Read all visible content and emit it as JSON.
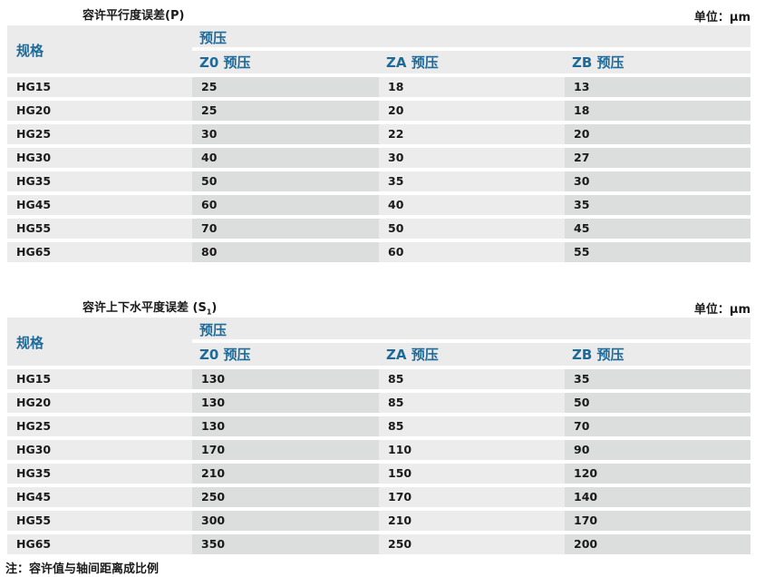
{
  "table1": {
    "title": "容许平行度误差(P)",
    "unit": "单位：μm",
    "spec": "规格",
    "preload": "预压",
    "cols": [
      "Z0 预压",
      "ZA 预压",
      "ZB 预压"
    ],
    "rows": [
      [
        "HG15",
        "25",
        "18",
        "13"
      ],
      [
        "HG20",
        "25",
        "20",
        "18"
      ],
      [
        "HG25",
        "30",
        "22",
        "20"
      ],
      [
        "HG30",
        "40",
        "30",
        "27"
      ],
      [
        "HG35",
        "50",
        "35",
        "30"
      ],
      [
        "HG45",
        "60",
        "40",
        "35"
      ],
      [
        "HG55",
        "70",
        "50",
        "45"
      ],
      [
        "HG65",
        "80",
        "60",
        "55"
      ]
    ]
  },
  "table2": {
    "title": "容许上下水平度误差 (S",
    "title_sub": "1",
    "title_end": ")",
    "unit": "单位：μm",
    "spec": "规格",
    "preload": "预压",
    "cols": [
      "Z0 预压",
      "ZA 预压",
      "ZB 预压"
    ],
    "rows": [
      [
        "HG15",
        "130",
        "85",
        "35"
      ],
      [
        "HG20",
        "130",
        "85",
        "50"
      ],
      [
        "HG25",
        "130",
        "85",
        "70"
      ],
      [
        "HG30",
        "170",
        "110",
        "90"
      ],
      [
        "HG35",
        "210",
        "150",
        "120"
      ],
      [
        "HG45",
        "250",
        "170",
        "140"
      ],
      [
        "HG55",
        "300",
        "210",
        "170"
      ],
      [
        "HG65",
        "350",
        "250",
        "200"
      ]
    ]
  },
  "note": "注：容许值与轴间距离成比例"
}
